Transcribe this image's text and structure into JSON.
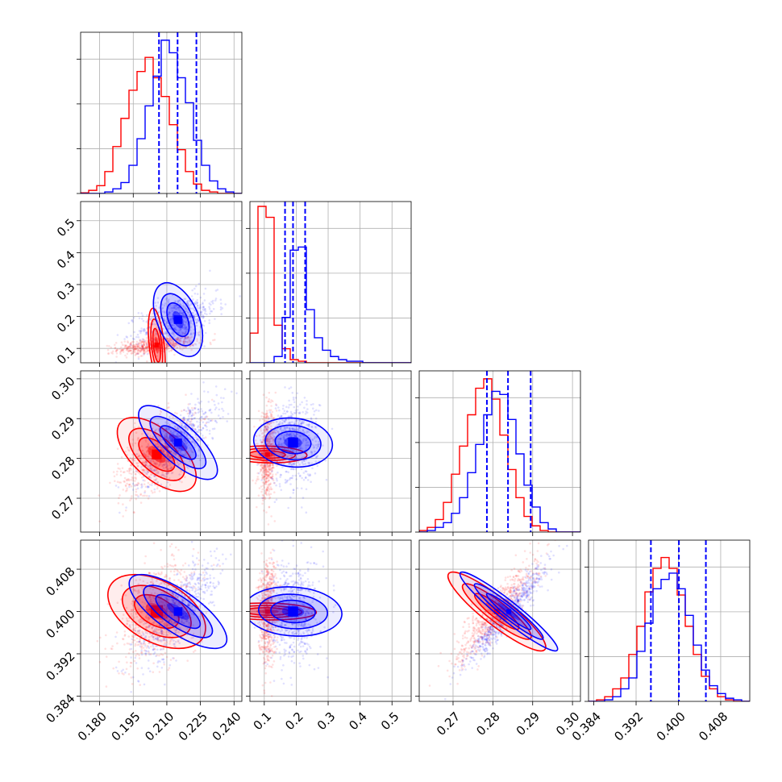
{
  "chart_data": {
    "type": "corner",
    "colors": {
      "model_a": "#ff0000",
      "model_b": "#0000ff",
      "grid": "#b0b0b0"
    },
    "parameters": [
      {
        "range": [
          0.1715,
          0.2435
        ],
        "ticks": [
          "0.180",
          "0.195",
          "0.210",
          "0.225",
          "0.240"
        ],
        "tick_values": [
          0.18,
          0.195,
          0.21,
          0.225,
          0.24
        ]
      },
      {
        "range": [
          0.055,
          0.56
        ],
        "ticks": [
          "0.1",
          "0.2",
          "0.3",
          "0.4",
          "0.5"
        ],
        "tick_values": [
          0.1,
          0.2,
          0.3,
          0.4,
          0.5
        ]
      },
      {
        "range": [
          0.2615,
          0.302
        ],
        "ticks": [
          "0.27",
          "0.28",
          "0.29",
          "0.30"
        ],
        "tick_values": [
          0.27,
          0.28,
          0.29,
          0.3
        ]
      },
      {
        "range": [
          0.383,
          0.4135
        ],
        "ticks": [
          "0.384",
          "0.392",
          "0.400",
          "0.408"
        ],
        "tick_values": [
          0.384,
          0.392,
          0.4,
          0.408
        ]
      }
    ],
    "quantiles_model_b": [
      [
        0.2065,
        0.2148,
        0.2232
      ],
      [
        0.165,
        0.19,
        0.228
      ],
      [
        0.2785,
        0.2838,
        0.2895
      ],
      [
        0.3948,
        0.4001,
        0.4052
      ]
    ],
    "series": [
      {
        "id": "model_a",
        "color": "#ff0000",
        "mean": [
          0.2055,
          0.11,
          0.281,
          0.4
        ],
        "sd": [
          0.0075,
          0.012,
          0.0045,
          0.0042
        ],
        "corr": [
          [
            0,
            1,
            0.45
          ],
          [
            0,
            2,
            0.6
          ],
          [
            0,
            3,
            0.45
          ],
          [
            2,
            3,
            0.9
          ]
        ],
        "hist": [
          [
            0.1715,
            0.2435,
            [
              0.004,
              0.02,
              0.05,
              0.14,
              0.3,
              0.48,
              0.66,
              0.78,
              0.87,
              0.74,
              0.62,
              0.44,
              0.28,
              0.14,
              0.06,
              0.02,
              0.01,
              0,
              0,
              0
            ]
          ],
          [
            0.055,
            0.56,
            [
              0.19,
              1,
              0.93,
              0.24,
              0.09,
              0.02,
              0.01,
              0,
              0,
              0,
              0,
              0,
              0,
              0,
              0,
              0,
              0,
              0,
              0,
              0
            ]
          ],
          [
            0.2615,
            0.302,
            [
              0.01,
              0.03,
              0.08,
              0.19,
              0.37,
              0.55,
              0.75,
              0.92,
              0.98,
              0.85,
              0.62,
              0.4,
              0.22,
              0.1,
              0.04,
              0.01,
              0,
              0,
              0,
              0
            ]
          ],
          [
            0.383,
            0.4135,
            [
              0,
              0.01,
              0.03,
              0.08,
              0.15,
              0.3,
              0.48,
              0.7,
              0.85,
              0.92,
              0.85,
              0.68,
              0.48,
              0.3,
              0.16,
              0.08,
              0.03,
              0.01,
              0,
              0
            ]
          ]
        ]
      },
      {
        "id": "model_b",
        "color": "#0000ff",
        "mean": [
          0.215,
          0.19,
          0.284,
          0.4
        ],
        "sd": [
          0.0075,
          0.035,
          0.0045,
          0.0042
        ],
        "corr": [
          [
            0,
            1,
            0.45
          ],
          [
            0,
            2,
            0.75
          ],
          [
            0,
            3,
            0.75
          ],
          [
            2,
            3,
            0.95
          ]
        ],
        "hist": [
          [
            0.1715,
            0.2435,
            [
              0,
              0,
              0,
              0.01,
              0.03,
              0.07,
              0.18,
              0.35,
              0.56,
              0.75,
              0.98,
              0.9,
              0.74,
              0.58,
              0.34,
              0.18,
              0.08,
              0.03,
              0.01,
              0
            ]
          ],
          [
            0.055,
            0.56,
            [
              0,
              0,
              0,
              0.04,
              0.29,
              0.72,
              0.74,
              0.34,
              0.16,
              0.08,
              0.04,
              0.02,
              0.01,
              0.01,
              0,
              0,
              0,
              0,
              0,
              0
            ]
          ],
          [
            0.2615,
            0.302,
            [
              0,
              0.01,
              0.03,
              0.06,
              0.12,
              0.22,
              0.38,
              0.56,
              0.75,
              0.9,
              0.88,
              0.72,
              0.5,
              0.3,
              0.16,
              0.06,
              0.02,
              0,
              0,
              0
            ]
          ],
          [
            0.383,
            0.4135,
            [
              0,
              0,
              0.01,
              0.03,
              0.08,
              0.15,
              0.32,
              0.5,
              0.72,
              0.78,
              0.82,
              0.72,
              0.55,
              0.36,
              0.2,
              0.1,
              0.05,
              0.02,
              0.01,
              0
            ]
          ]
        ]
      }
    ]
  }
}
